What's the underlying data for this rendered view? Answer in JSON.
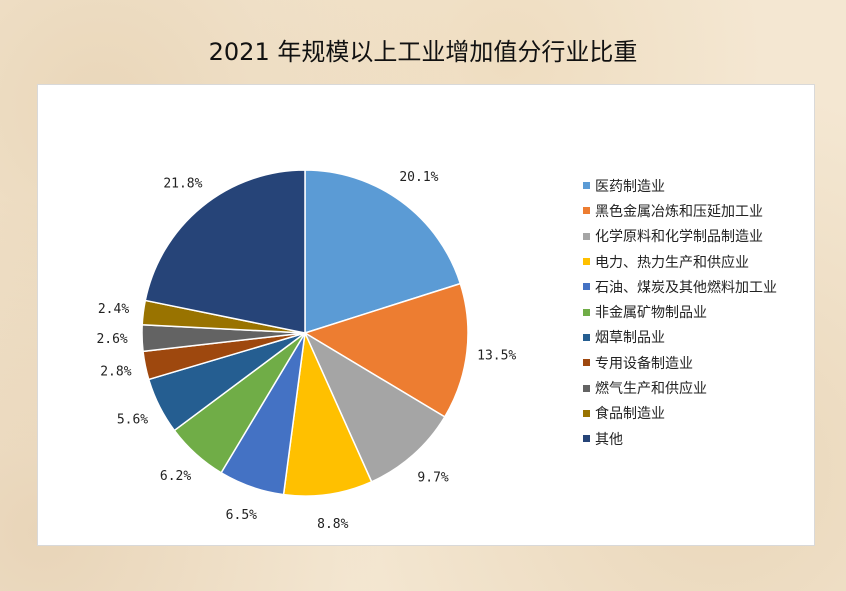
{
  "chart_data": {
    "type": "pie",
    "title": "2021 年规模以上工业增加值分行业比重",
    "legend_position": "right",
    "label_format": "{value}%",
    "slices": [
      {
        "label": "医药制造业",
        "value": 20.1,
        "color": "#5b9bd5"
      },
      {
        "label": "黑色金属冶炼和压延加工业",
        "value": 13.5,
        "color": "#ed7d31"
      },
      {
        "label": "化学原料和化学制品制造业",
        "value": 9.7,
        "color": "#a5a5a5"
      },
      {
        "label": "电力、热力生产和供应业",
        "value": 8.8,
        "color": "#ffc000"
      },
      {
        "label": "石油、煤炭及其他燃料加工业",
        "value": 6.5,
        "color": "#4472c4"
      },
      {
        "label": "非金属矿物制品业",
        "value": 6.2,
        "color": "#70ad47"
      },
      {
        "label": "烟草制品业",
        "value": 5.6,
        "color": "#255e91"
      },
      {
        "label": "专用设备制造业",
        "value": 2.8,
        "color": "#9e480e"
      },
      {
        "label": "燃气生产和供应业",
        "value": 2.6,
        "color": "#636363"
      },
      {
        "label": "食品制造业",
        "value": 2.4,
        "color": "#997300"
      },
      {
        "label": "其他",
        "value": 21.8,
        "color": "#264478"
      }
    ]
  }
}
